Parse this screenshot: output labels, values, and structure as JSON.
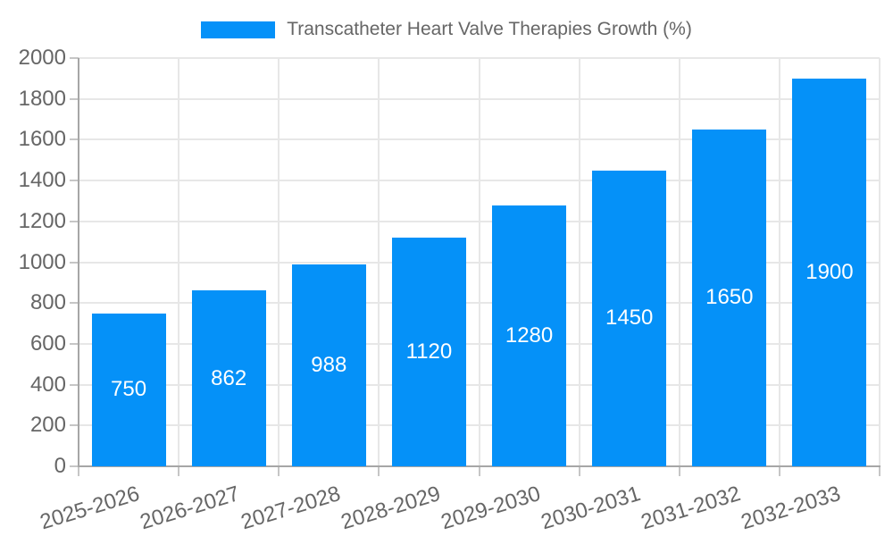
{
  "chart_data": {
    "type": "bar",
    "title": "Transcatheter Heart Valve Therapies Growth (%)",
    "categories": [
      "2025-2026",
      "2026-2027",
      "2027-2028",
      "2028-2029",
      "2029-2030",
      "2030-2031",
      "2031-2032",
      "2032-2033"
    ],
    "values": [
      750,
      862,
      988,
      1120,
      1280,
      1450,
      1650,
      1900
    ],
    "xlabel": "",
    "ylabel": "",
    "ylim": [
      0,
      2000
    ],
    "ytick_step": 200,
    "grid": true,
    "legend_position": "top",
    "bar_labels_inside": true
  },
  "colors": {
    "bar": "#0591f8",
    "value_label": "#ffffff",
    "text": "#666666",
    "axis": "#a6a6a6",
    "grid": "#e7e7e7",
    "tick": "#c6c6c6"
  }
}
